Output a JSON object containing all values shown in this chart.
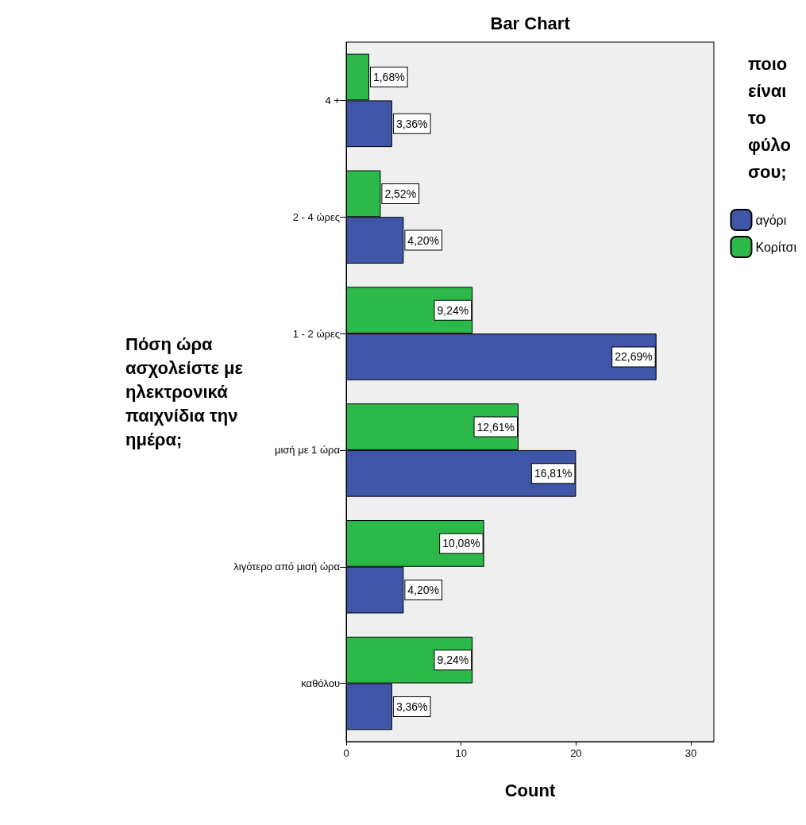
{
  "chart_data": {
    "type": "bar",
    "orientation": "horizontal",
    "title": "Bar Chart",
    "xlabel": "Count",
    "ylabel": "Πόση ώρα ασχολείστε με ηλεκτρονικά παιχνίδια την ημέρα;",
    "legend_title": "ποιο είναι το φύλο σου;",
    "legend": "right",
    "grid": false,
    "categories": [
      "4 +",
      "2 - 4 ώρες",
      "1 - 2 ώρες",
      "μισή με 1 ώρα",
      "λιγότερο από μισή ώρα",
      "καθόλου"
    ],
    "xlim": [
      0,
      32
    ],
    "xticks": [
      0,
      10,
      20,
      30
    ],
    "series": [
      {
        "name": "Κορίτσι",
        "color": "#2db84a",
        "values": [
          2,
          3,
          11,
          15,
          12,
          11
        ]
      },
      {
        "name": "αγόρι",
        "color": "#3f56a8",
        "values": [
          4,
          5,
          27,
          20,
          5,
          4
        ]
      }
    ],
    "annotations": [
      {
        "text": "1,68%",
        "x": 2,
        "y": "4 +"
      },
      {
        "text": "2,52%",
        "x": 3,
        "y": "2 - 4 ώρες"
      },
      {
        "text": "9,24%",
        "x": 11,
        "y": "1 - 2 ώρες"
      },
      {
        "text": "12,61%",
        "x": 15,
        "y": "μισή με 1 ώρα"
      },
      {
        "text": "10,08%",
        "x": 12,
        "y": "λιγότερο από μισή ώρα"
      },
      {
        "text": "9,24%",
        "x": 11,
        "y": "καθόλου"
      },
      {
        "text": "3,36%",
        "x": 4,
        "y": "4 +"
      },
      {
        "text": "4,20%",
        "x": 5,
        "y": "2 - 4 ώρες"
      },
      {
        "text": "22,69%",
        "x": 27,
        "y": "1 - 2 ώρες"
      },
      {
        "text": "16,81%",
        "x": 20,
        "y": "μισή με 1 ώρα"
      },
      {
        "text": "4,20%",
        "x": 5,
        "y": "λιγότερο από μισή ώρα"
      },
      {
        "text": "3,36%",
        "x": 4,
        "y": "καθόλου"
      }
    ]
  }
}
